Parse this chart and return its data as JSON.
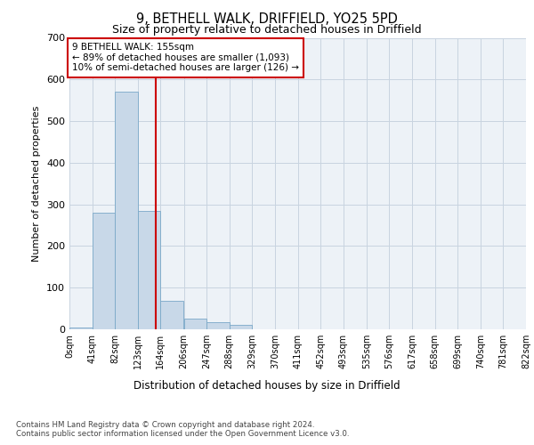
{
  "title": "9, BETHELL WALK, DRIFFIELD, YO25 5PD",
  "subtitle": "Size of property relative to detached houses in Driffield",
  "xlabel": "Distribution of detached houses by size in Driffield",
  "ylabel": "Number of detached properties",
  "bar_color": "#c8d8e8",
  "bar_edge_color": "#7aa8c8",
  "bin_edges": [
    0,
    41,
    82,
    123,
    164,
    206,
    247,
    288,
    329,
    370,
    411,
    452,
    493,
    535,
    576,
    617,
    658,
    699,
    740,
    781,
    822
  ],
  "bin_labels": [
    "0sqm",
    "41sqm",
    "82sqm",
    "123sqm",
    "164sqm",
    "206sqm",
    "247sqm",
    "288sqm",
    "329sqm",
    "370sqm",
    "411sqm",
    "452sqm",
    "493sqm",
    "535sqm",
    "576sqm",
    "617sqm",
    "658sqm",
    "699sqm",
    "740sqm",
    "781sqm",
    "822sqm"
  ],
  "bar_heights": [
    5,
    280,
    570,
    285,
    68,
    25,
    18,
    10,
    0,
    0,
    0,
    0,
    0,
    0,
    0,
    0,
    0,
    0,
    0,
    0
  ],
  "ylim": [
    0,
    700
  ],
  "yticks": [
    0,
    100,
    200,
    300,
    400,
    500,
    600,
    700
  ],
  "vline_x": 155,
  "vline_color": "#cc0000",
  "annotation_text": "9 BETHELL WALK: 155sqm\n← 89% of detached houses are smaller (1,093)\n10% of semi-detached houses are larger (126) →",
  "annotation_box_color": "#ffffff",
  "annotation_border_color": "#cc0000",
  "footer_line1": "Contains HM Land Registry data © Crown copyright and database right 2024.",
  "footer_line2": "Contains public sector information licensed under the Open Government Licence v3.0.",
  "bg_color": "#edf2f7",
  "grid_color": "#c8d4e0"
}
